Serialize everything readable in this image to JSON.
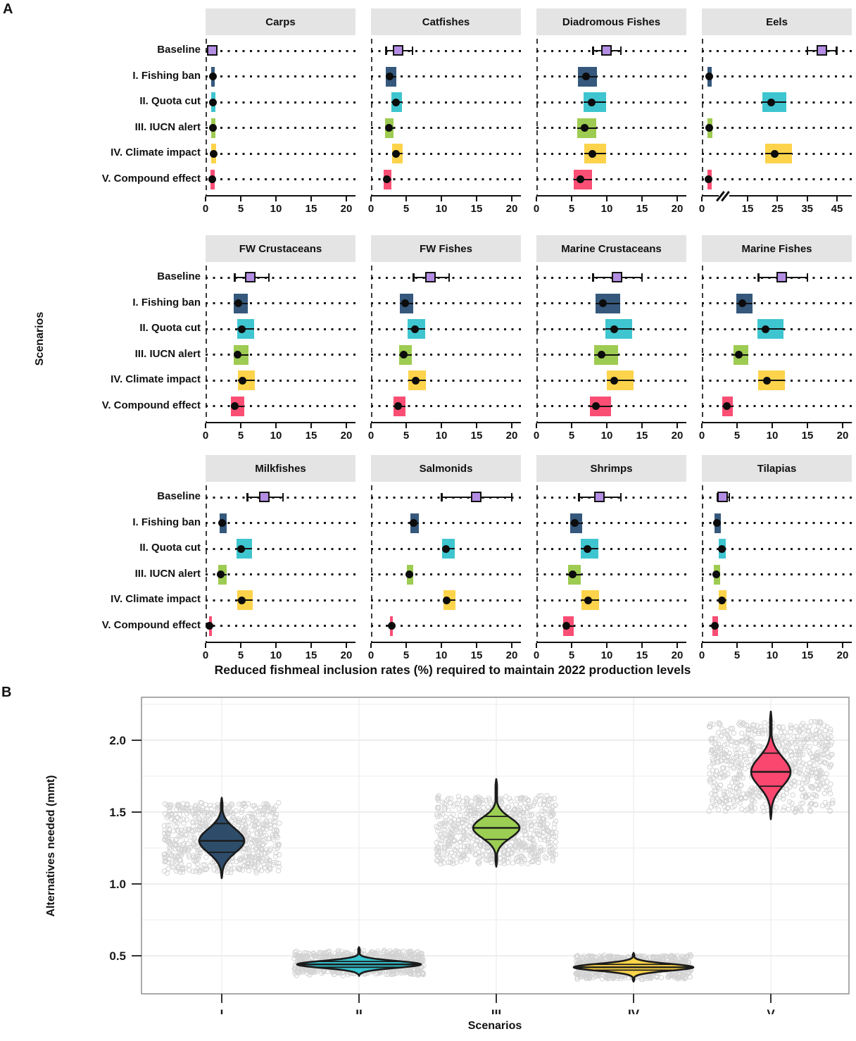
{
  "page": {
    "panel_a_label": "A",
    "panel_b_label": "B"
  },
  "chart_data": [
    {
      "type": "table",
      "panel_label": "A",
      "subtype": "faceted-dot-crossbar",
      "xlabel": "Reduced fishmeal inclusion rates (%) required to maintain 2022 production levels",
      "ylabel": "Scenarios",
      "scenarios": [
        "Baseline",
        "I. Fishing ban",
        "II. Quota cut",
        "III. IUCN alert",
        "IV. Climate impact",
        "V. Compound effect"
      ],
      "colors": {
        "baseline_fill": "#B38DE3",
        "scenario_fills": [
          "#35587C",
          "#3EC5CF",
          "#9ECB52",
          "#FCD34A",
          "#FA4E74"
        ],
        "header_bg": "#E4E4E4"
      },
      "default_axis": {
        "ticks": [
          0,
          5,
          10,
          15,
          20
        ],
        "max": 21.3,
        "break": false
      },
      "facets": [
        {
          "title": "Carps",
          "baseline": {
            "mean": 1.0,
            "lo": 0.6,
            "hi": 1.6
          },
          "rows": [
            {
              "lo": 0.8,
              "hi": 1.3,
              "pt": 1.0
            },
            {
              "lo": 0.8,
              "hi": 1.4,
              "pt": 1.0
            },
            {
              "lo": 0.8,
              "hi": 1.4,
              "pt": 1.0
            },
            {
              "lo": 0.8,
              "hi": 1.5,
              "pt": 1.1
            },
            {
              "lo": 0.7,
              "hi": 1.3,
              "pt": 0.9
            }
          ]
        },
        {
          "title": "Catfishes",
          "baseline": {
            "mean": 3.9,
            "lo": 2.1,
            "hi": 5.9
          },
          "rows": [
            {
              "lo": 2.1,
              "hi": 3.6,
              "pt": 2.6
            },
            {
              "lo": 2.9,
              "hi": 4.4,
              "pt": 3.5
            },
            {
              "lo": 2.0,
              "hi": 3.2,
              "pt": 2.5
            },
            {
              "lo": 3.0,
              "hi": 4.5,
              "pt": 3.5
            },
            {
              "lo": 1.8,
              "hi": 2.9,
              "pt": 2.2
            }
          ]
        },
        {
          "title": "Diadromous Fishes",
          "baseline": {
            "mean": 10.0,
            "lo": 8.0,
            "hi": 12.0
          },
          "rows": [
            {
              "lo": 5.9,
              "hi": 8.6,
              "pt": 7.0
            },
            {
              "lo": 6.7,
              "hi": 9.9,
              "pt": 7.8
            },
            {
              "lo": 5.8,
              "hi": 8.5,
              "pt": 6.8
            },
            {
              "lo": 6.8,
              "hi": 9.9,
              "pt": 7.9
            },
            {
              "lo": 5.3,
              "hi": 7.9,
              "pt": 6.2
            }
          ]
        },
        {
          "title": "Eels",
          "axis": {
            "ticks": [
              0,
              15,
              25,
              35,
              45
            ],
            "max": 46,
            "break": true
          },
          "baseline": {
            "mean": 40.0,
            "lo": 35.0,
            "hi": 45.0
          },
          "rows": [
            {
              "lo": 2.5,
              "hi": 4.2,
              "pt": 3.1
            },
            {
              "lo": 20.0,
              "hi": 28.0,
              "pt": 23.0
            },
            {
              "lo": 2.5,
              "hi": 4.4,
              "pt": 3.2
            },
            {
              "lo": 21.0,
              "hi": 30.0,
              "pt": 24.0
            },
            {
              "lo": 2.3,
              "hi": 4.2,
              "pt": 3.0
            }
          ]
        },
        {
          "title": "FW Crustaceans",
          "baseline": {
            "mean": 6.4,
            "lo": 4.1,
            "hi": 9.0
          },
          "rows": [
            {
              "lo": 4.0,
              "hi": 6.0,
              "pt": 4.6
            },
            {
              "lo": 4.5,
              "hi": 6.9,
              "pt": 5.1
            },
            {
              "lo": 4.0,
              "hi": 6.1,
              "pt": 4.5
            },
            {
              "lo": 4.6,
              "hi": 7.0,
              "pt": 5.2
            },
            {
              "lo": 3.6,
              "hi": 5.5,
              "pt": 4.1
            }
          ]
        },
        {
          "title": "FW Fishes",
          "baseline": {
            "mean": 8.5,
            "lo": 6.0,
            "hi": 11.1
          },
          "rows": [
            {
              "lo": 4.1,
              "hi": 6.0,
              "pt": 4.8
            },
            {
              "lo": 5.2,
              "hi": 7.7,
              "pt": 6.2
            },
            {
              "lo": 4.0,
              "hi": 5.8,
              "pt": 4.6
            },
            {
              "lo": 5.3,
              "hi": 7.8,
              "pt": 6.3
            },
            {
              "lo": 3.2,
              "hi": 4.9,
              "pt": 3.8
            }
          ]
        },
        {
          "title": "Marine Crustaceans",
          "baseline": {
            "mean": 11.5,
            "lo": 8.0,
            "hi": 15.0
          },
          "rows": [
            {
              "lo": 8.4,
              "hi": 11.9,
              "pt": 9.4
            },
            {
              "lo": 9.8,
              "hi": 13.6,
              "pt": 11.0
            },
            {
              "lo": 8.2,
              "hi": 11.6,
              "pt": 9.2
            },
            {
              "lo": 10.0,
              "hi": 13.8,
              "pt": 11.0
            },
            {
              "lo": 7.6,
              "hi": 10.6,
              "pt": 8.4
            }
          ]
        },
        {
          "title": "Marine Fishes",
          "baseline": {
            "mean": 11.4,
            "lo": 8.0,
            "hi": 15.0
          },
          "rows": [
            {
              "lo": 4.9,
              "hi": 7.2,
              "pt": 5.7
            },
            {
              "lo": 7.9,
              "hi": 11.6,
              "pt": 9.0
            },
            {
              "lo": 4.5,
              "hi": 6.6,
              "pt": 5.2
            },
            {
              "lo": 8.0,
              "hi": 11.8,
              "pt": 9.2
            },
            {
              "lo": 2.9,
              "hi": 4.4,
              "pt": 3.5
            }
          ]
        },
        {
          "title": "Milkfishes",
          "baseline": {
            "mean": 8.4,
            "lo": 5.9,
            "hi": 11.0
          },
          "rows": [
            {
              "lo": 2.0,
              "hi": 3.0,
              "pt": 2.3
            },
            {
              "lo": 4.4,
              "hi": 6.6,
              "pt": 5.0
            },
            {
              "lo": 1.8,
              "hi": 3.0,
              "pt": 2.1
            },
            {
              "lo": 4.5,
              "hi": 6.7,
              "pt": 5.1
            },
            {
              "lo": 0.5,
              "hi": 0.9,
              "pt": 0.6
            }
          ]
        },
        {
          "title": "Salmonids",
          "baseline": {
            "mean": 15.0,
            "lo": 10.0,
            "hi": 20.0
          },
          "rows": [
            {
              "lo": 5.6,
              "hi": 6.8,
              "pt": 6.0
            },
            {
              "lo": 10.1,
              "hi": 11.9,
              "pt": 10.6
            },
            {
              "lo": 5.1,
              "hi": 6.0,
              "pt": 5.4
            },
            {
              "lo": 10.3,
              "hi": 12.0,
              "pt": 10.7
            },
            {
              "lo": 2.7,
              "hi": 3.1,
              "pt": 2.9
            }
          ]
        },
        {
          "title": "Shrimps",
          "baseline": {
            "mean": 9.0,
            "lo": 6.0,
            "hi": 12.0
          },
          "rows": [
            {
              "lo": 4.8,
              "hi": 6.5,
              "pt": 5.4
            },
            {
              "lo": 6.3,
              "hi": 8.8,
              "pt": 7.2
            },
            {
              "lo": 4.5,
              "hi": 6.3,
              "pt": 5.1
            },
            {
              "lo": 6.4,
              "hi": 8.9,
              "pt": 7.3
            },
            {
              "lo": 3.8,
              "hi": 5.3,
              "pt": 4.2
            }
          ]
        },
        {
          "title": "Tilapias",
          "baseline": {
            "mean": 3.0,
            "lo": 2.2,
            "hi": 3.9
          },
          "rows": [
            {
              "lo": 1.8,
              "hi": 2.7,
              "pt": 2.1
            },
            {
              "lo": 2.4,
              "hi": 3.4,
              "pt": 2.8
            },
            {
              "lo": 1.7,
              "hi": 2.6,
              "pt": 2.0
            },
            {
              "lo": 2.4,
              "hi": 3.5,
              "pt": 2.8
            },
            {
              "lo": 1.5,
              "hi": 2.3,
              "pt": 1.8
            }
          ]
        }
      ]
    },
    {
      "type": "violin",
      "panel_label": "B",
      "xlabel": "Scenarios",
      "ylabel": "Alternatives needed (mmt)",
      "categories": [
        "I",
        "II",
        "III",
        "IV",
        "V"
      ],
      "yticks": [
        0.5,
        1.0,
        1.5,
        2.0
      ],
      "ylim": [
        0.2,
        2.32
      ],
      "jitter_color": "#C9C9C9",
      "series": [
        {
          "name": "I",
          "color": "#2E4D6B",
          "median": 1.3,
          "q1": 1.22,
          "q3": 1.42,
          "min": 1.04,
          "max": 1.6,
          "jitter_lo": 1.08,
          "jitter_hi": 1.56
        },
        {
          "name": "II",
          "color": "#35C2CE",
          "median": 0.44,
          "q1": 0.42,
          "q3": 0.46,
          "min": 0.36,
          "max": 0.56,
          "jitter_lo": 0.37,
          "jitter_hi": 0.53
        },
        {
          "name": "III",
          "color": "#9CCE53",
          "median": 1.39,
          "q1": 1.31,
          "q3": 1.47,
          "min": 1.12,
          "max": 1.73,
          "jitter_lo": 1.14,
          "jitter_hi": 1.61
        },
        {
          "name": "IV",
          "color": "#FBD348",
          "median": 0.42,
          "q1": 0.4,
          "q3": 0.44,
          "min": 0.32,
          "max": 0.52,
          "jitter_lo": 0.34,
          "jitter_hi": 0.5
        },
        {
          "name": "V",
          "color": "#F9476F",
          "median": 1.78,
          "q1": 1.68,
          "q3": 1.91,
          "min": 1.45,
          "max": 2.2,
          "jitter_lo": 1.5,
          "jitter_hi": 2.13
        }
      ]
    }
  ]
}
